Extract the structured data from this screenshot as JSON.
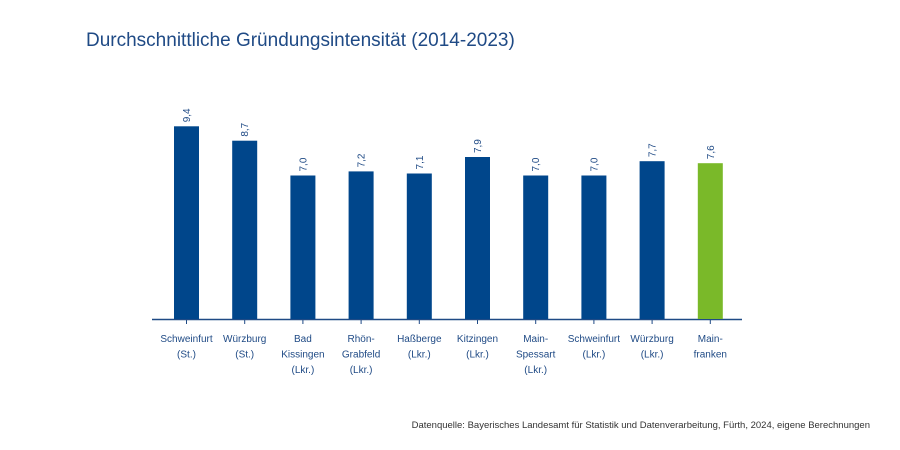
{
  "chart_data": {
    "type": "bar",
    "title": "Durchschnittliche Gründungsintensität (2014-2023)",
    "categories": [
      [
        "Schweinfurt",
        "(St.)"
      ],
      [
        "Würzburg",
        "(St.)"
      ],
      [
        "Bad",
        "Kissingen",
        "(Lkr.)"
      ],
      [
        "Rhön-",
        "Grabfeld",
        "(Lkr.)"
      ],
      [
        "Haßberge",
        "(Lkr.)"
      ],
      [
        "Kitzingen",
        "(Lkr.)"
      ],
      [
        "Main-",
        "Spessart",
        "(Lkr.)"
      ],
      [
        "Schweinfurt",
        "(Lkr.)"
      ],
      [
        "Würzburg",
        "(Lkr.)"
      ],
      [
        "Main-",
        "franken"
      ]
    ],
    "values": [
      9.4,
      8.7,
      7.0,
      7.2,
      7.1,
      7.9,
      7.0,
      7.0,
      7.7,
      7.6
    ],
    "value_labels": [
      "9,4",
      "8,7",
      "7,0",
      "7,2",
      "7,1",
      "7,9",
      "7,0",
      "7,0",
      "7,7",
      "7,6"
    ],
    "ylim": [
      0,
      10
    ],
    "grid": false,
    "colors": {
      "default": "#00468b",
      "highlight": "#7ab929",
      "axis": "#1f4a85",
      "label": "#1f4a85"
    },
    "highlight_index": 9
  },
  "source": "Datenquelle: Bayerisches Landesamt für Statistik und Datenverarbeitung, Fürth, 2024, eigene Berechnungen"
}
